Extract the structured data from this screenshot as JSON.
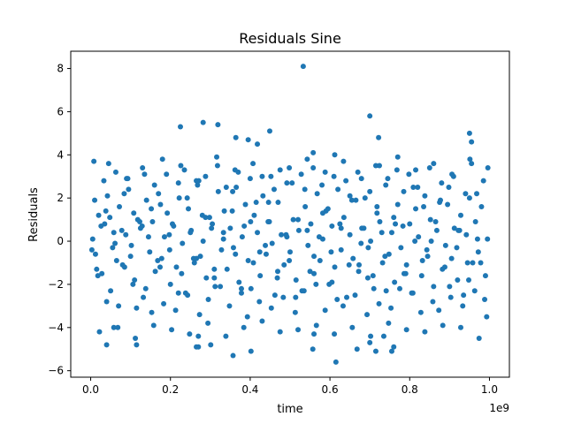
{
  "chart_data": {
    "type": "scatter",
    "title": "Residuals Sine",
    "xlabel": "time",
    "ylabel": "Residuals",
    "x_offset_text": "1e9",
    "xlim": [
      -50000000,
      1050000000
    ],
    "ylim": [
      -6.3,
      8.8
    ],
    "x_ticks": [
      0,
      200000000,
      400000000,
      600000000,
      800000000,
      1000000000
    ],
    "x_tick_labels": [
      "0.0",
      "0.2",
      "0.4",
      "0.6",
      "0.8",
      "1.0"
    ],
    "y_ticks": [
      -6,
      -4,
      -2,
      0,
      2,
      4,
      6,
      8
    ],
    "y_tick_labels": [
      "−6",
      "−4",
      "−2",
      "0",
      "2",
      "4",
      "6",
      "8"
    ],
    "grid": false,
    "marker_color": "#1f77b4",
    "series": [
      {
        "x": [
          5000000,
          12000000,
          20000000,
          28000000,
          35000000,
          42000000,
          50000000,
          58000000,
          65000000,
          72000000,
          80000000,
          88000000,
          95000000,
          102000000,
          110000000,
          118000000,
          125000000,
          132000000,
          140000000,
          148000000,
          155000000,
          162000000,
          170000000,
          178000000,
          185000000,
          192000000,
          200000000,
          208000000,
          215000000,
          222000000,
          230000000,
          238000000,
          245000000,
          252000000,
          260000000,
          268000000,
          275000000,
          282000000,
          290000000,
          298000000,
          305000000,
          312000000,
          320000000,
          328000000,
          335000000,
          342000000,
          350000000,
          358000000,
          365000000,
          372000000,
          380000000,
          388000000,
          395000000,
          402000000,
          410000000,
          418000000,
          425000000,
          432000000,
          440000000,
          448000000,
          455000000,
          462000000,
          470000000,
          478000000,
          485000000,
          492000000,
          500000000,
          508000000,
          515000000,
          522000000,
          530000000,
          538000000,
          545000000,
          552000000,
          560000000,
          568000000,
          575000000,
          582000000,
          590000000,
          598000000,
          605000000,
          612000000,
          620000000,
          628000000,
          635000000,
          642000000,
          650000000,
          658000000,
          665000000,
          672000000,
          680000000,
          688000000,
          695000000,
          702000000,
          710000000,
          718000000,
          725000000,
          732000000,
          740000000,
          748000000,
          755000000,
          762000000,
          770000000,
          778000000,
          785000000,
          792000000,
          800000000,
          808000000,
          815000000,
          822000000,
          830000000,
          838000000,
          845000000,
          852000000,
          860000000,
          868000000,
          875000000,
          882000000,
          890000000,
          898000000,
          905000000,
          912000000,
          920000000,
          928000000,
          935000000,
          942000000,
          950000000,
          958000000,
          965000000,
          972000000,
          980000000,
          988000000,
          995000000,
          3000000,
          10000000,
          18000000,
          26000000,
          33000000,
          40000000,
          48000000,
          55000000,
          63000000,
          70000000,
          78000000,
          85000000,
          93000000,
          100000000,
          108000000,
          115000000,
          123000000,
          130000000,
          138000000,
          145000000,
          153000000,
          160000000,
          168000000,
          175000000,
          183000000,
          190000000,
          198000000,
          205000000,
          213000000,
          220000000,
          228000000,
          235000000,
          243000000,
          250000000,
          258000000,
          265000000,
          273000000,
          280000000,
          288000000,
          295000000,
          303000000,
          310000000,
          318000000,
          325000000,
          333000000,
          340000000,
          348000000,
          355000000,
          363000000,
          370000000,
          378000000,
          385000000,
          393000000,
          400000000,
          408000000,
          415000000,
          423000000,
          430000000,
          438000000,
          445000000,
          453000000,
          460000000,
          468000000,
          475000000,
          483000000,
          490000000,
          498000000,
          505000000,
          513000000,
          520000000,
          528000000,
          535000000,
          543000000,
          550000000,
          558000000,
          565000000,
          573000000,
          580000000,
          588000000,
          595000000,
          603000000,
          610000000,
          618000000,
          625000000,
          633000000,
          640000000,
          648000000,
          655000000,
          663000000,
          670000000,
          678000000,
          685000000,
          693000000,
          700000000,
          708000000,
          715000000,
          723000000,
          730000000,
          738000000,
          745000000,
          753000000,
          760000000,
          768000000,
          775000000,
          783000000,
          790000000,
          798000000,
          805000000,
          813000000,
          820000000,
          828000000,
          835000000,
          843000000,
          850000000,
          858000000,
          865000000,
          873000000,
          880000000,
          888000000,
          895000000,
          903000000,
          910000000,
          918000000,
          925000000,
          933000000,
          940000000,
          948000000,
          955000000,
          963000000,
          970000000,
          978000000,
          985000000,
          993000000,
          8000000,
          22000000,
          45000000,
          68000000,
          90000000,
          112000000,
          135000000,
          158000000,
          180000000,
          203000000,
          226000000,
          248000000,
          271000000,
          294000000,
          316000000,
          339000000,
          362000000,
          384000000,
          407000000,
          430000000,
          452000000,
          475000000,
          498000000,
          520000000,
          543000000,
          566000000,
          588000000,
          611000000,
          634000000,
          656000000,
          679000000,
          702000000,
          724000000,
          747000000,
          770000000,
          792000000,
          815000000,
          838000000,
          860000000,
          883000000,
          906000000,
          928000000,
          951000000,
          974000000,
          996000000,
          15000000,
          38000000,
          61000000,
          84000000,
          106000000,
          129000000,
          152000000,
          174000000,
          197000000,
          220000000,
          242000000,
          265000000,
          288000000,
          310000000,
          333000000,
          356000000,
          378000000,
          401000000,
          424000000,
          446000000,
          469000000,
          492000000,
          514000000,
          537000000,
          560000000,
          582000000,
          605000000,
          628000000,
          650000000,
          673000000,
          696000000,
          718000000,
          741000000,
          764000000,
          786000000,
          809000000,
          832000000,
          854000000,
          877000000,
          900000000,
          922000000,
          945000000,
          968000000,
          990000000,
          225000000,
          282000000,
          319000000,
          364000000,
          395000000,
          418000000,
          449000000,
          533000000,
          558000000,
          612000000,
          700000000,
          722000000,
          950000000,
          955000000,
          270000000,
          301000000,
          357000000,
          402000000,
          557000000,
          615000000,
          668000000,
          715000000,
          760000000,
          40000000,
          58000000,
          115000000,
          265000000,
          270000000,
          560000000,
          700000000,
          735000000,
          755000000
        ],
        "y": [
          0.1,
          -0.6,
          1.2,
          -1.5,
          0.8,
          2.1,
          -2.3,
          0.4,
          -0.9,
          1.6,
          -1.1,
          0.3,
          2.4,
          -0.2,
          -1.8,
          1.0,
          0.6,
          -2.6,
          1.9,
          -0.5,
          0.9,
          -1.4,
          2.2,
          -0.8,
          0.2,
          1.3,
          -2.0,
          0.7,
          -1.2,
          2.0,
          -0.1,
          -2.4,
          1.5,
          0.5,
          -1.0,
          2.6,
          -0.7,
          0.0,
          -1.7,
          1.1,
          0.8,
          -2.1,
          2.3,
          -0.4,
          1.4,
          -1.3,
          0.6,
          -0.3,
          2.5,
          -1.9,
          0.2,
          1.7,
          -0.9,
          -2.2,
          1.2,
          0.4,
          -1.6,
          2.1,
          -0.6,
          0.9,
          -0.1,
          -2.5,
          1.8,
          0.3,
          -1.1,
          2.7,
          -0.5,
          1.0,
          -1.8,
          0.5,
          -2.3,
          1.6,
          -0.2,
          0.8,
          -1.5,
          2.2,
          -0.9,
          0.1,
          1.4,
          -2.0,
          0.7,
          -1.2,
          2.4,
          -0.4,
          1.1,
          -2.6,
          0.3,
          -0.8,
          1.9,
          -1.4,
          0.6,
          2.0,
          -1.7,
          0.0,
          -2.2,
          1.3,
          0.9,
          -1.0,
          2.6,
          -0.6,
          0.4,
          -1.9,
          1.7,
          -0.3,
          2.3,
          -1.1,
          0.8,
          -2.4,
          1.5,
          0.2,
          -1.6,
          2.1,
          -0.7,
          1.0,
          -2.1,
          0.5,
          1.8,
          -1.3,
          -0.2,
          2.5,
          -0.8,
          0.6,
          -1.8,
          1.2,
          -2.5,
          0.3,
          2.0,
          -1.0,
          0.9,
          -0.5,
          1.6,
          -2.7,
          0.1,
          -0.4,
          1.9,
          -1.6,
          0.7,
          2.8,
          -2.8,
          1.1,
          -0.3,
          3.2,
          -3.0,
          0.5,
          -1.2,
          2.9,
          -0.7,
          1.3,
          -3.1,
          0.9,
          3.4,
          -2.2,
          0.2,
          -3.3,
          2.6,
          -0.9,
          1.7,
          -2.9,
          3.1,
          -0.4,
          0.8,
          -3.2,
          2.7,
          -1.5,
          3.3,
          -2.5,
          0.4,
          -0.8,
          2.8,
          -3.4,
          1.2,
          3.0,
          -2.7,
          0.6,
          -1.3,
          3.5,
          -2.1,
          0.1,
          2.5,
          -3.0,
          1.4,
          -0.6,
          3.2,
          -2.4,
          0.7,
          -3.5,
          2.9,
          -1.0,
          1.8,
          -2.8,
          3.0,
          -0.2,
          0.9,
          -3.1,
          2.4,
          -1.7,
          3.3,
          -2.6,
          0.3,
          -0.9,
          2.7,
          -3.3,
          1.0,
          3.1,
          -2.3,
          0.5,
          -1.4,
          3.4,
          -2.0,
          0.2,
          2.6,
          -3.2,
          1.5,
          -0.5,
          3.0,
          -2.7,
          0.8,
          -3.0,
          2.8,
          -1.1,
          1.9,
          -2.5,
          3.2,
          -0.1,
          0.6,
          -3.4,
          2.3,
          -1.6,
          3.5,
          -2.9,
          0.4,
          -0.7,
          2.9,
          -3.1,
          1.1,
          3.3,
          -2.2,
          0.7,
          -1.5,
          3.1,
          -2.4,
          0.0,
          2.5,
          -3.3,
          1.6,
          -0.4,
          3.4,
          -2.8,
          0.9,
          -3.2,
          2.7,
          -1.2,
          1.7,
          -2.6,
          3.0,
          -0.3,
          0.5,
          -3.0,
          2.2,
          -1.8,
          3.6,
          -2.3,
          0.1,
          -1.0,
          2.8,
          -3.5,
          3.7,
          -4.2,
          3.6,
          -4.0,
          2.9,
          -4.5,
          3.1,
          -3.9,
          3.8,
          -4.1,
          3.5,
          -4.3,
          2.8,
          -3.8,
          3.9,
          -4.4,
          3.3,
          -4.0,
          3.6,
          -3.7,
          3.0,
          -4.2,
          3.4,
          -4.1,
          3.8,
          -3.9,
          3.2,
          -4.3,
          3.7,
          -4.0,
          2.9,
          -4.4,
          3.5,
          -3.8,
          3.9,
          -4.1,
          3.3,
          -4.2,
          3.6,
          -3.9,
          3.1,
          -4.0,
          3.8,
          -4.5,
          3.4,
          -1.3,
          1.4,
          -0.1,
          2.2,
          -2.0,
          0.7,
          1.5,
          -1.2,
          0.3,
          -2.4,
          2.0,
          -0.8,
          1.1,
          -1.7,
          0.4,
          2.3,
          -2.2,
          0.9,
          -0.5,
          1.8,
          -1.4,
          0.2,
          -2.6,
          2.4,
          -0.7,
          1.3,
          -1.9,
          0.6,
          2.1,
          -1.1,
          -0.3,
          1.6,
          -2.3,
          0.8,
          -1.5,
          2.5,
          -0.9,
          0.0,
          1.9,
          -2.1,
          0.5,
          -1.0,
          2.2,
          -1.6,
          5.3,
          5.5,
          5.4,
          4.8,
          4.7,
          4.5,
          5.1,
          8.1,
          4.1,
          4.0,
          5.8,
          4.8,
          5.0,
          4.6,
          -4.9,
          -4.8,
          -5.3,
          -5.1,
          -5.0,
          -5.6,
          -5.0,
          -5.1,
          -4.9,
          -4.8,
          -4.0,
          -4.8,
          -4.9,
          -4.4,
          -4.3,
          -4.7,
          -4.4,
          -5.1
        ]
      }
    ]
  }
}
